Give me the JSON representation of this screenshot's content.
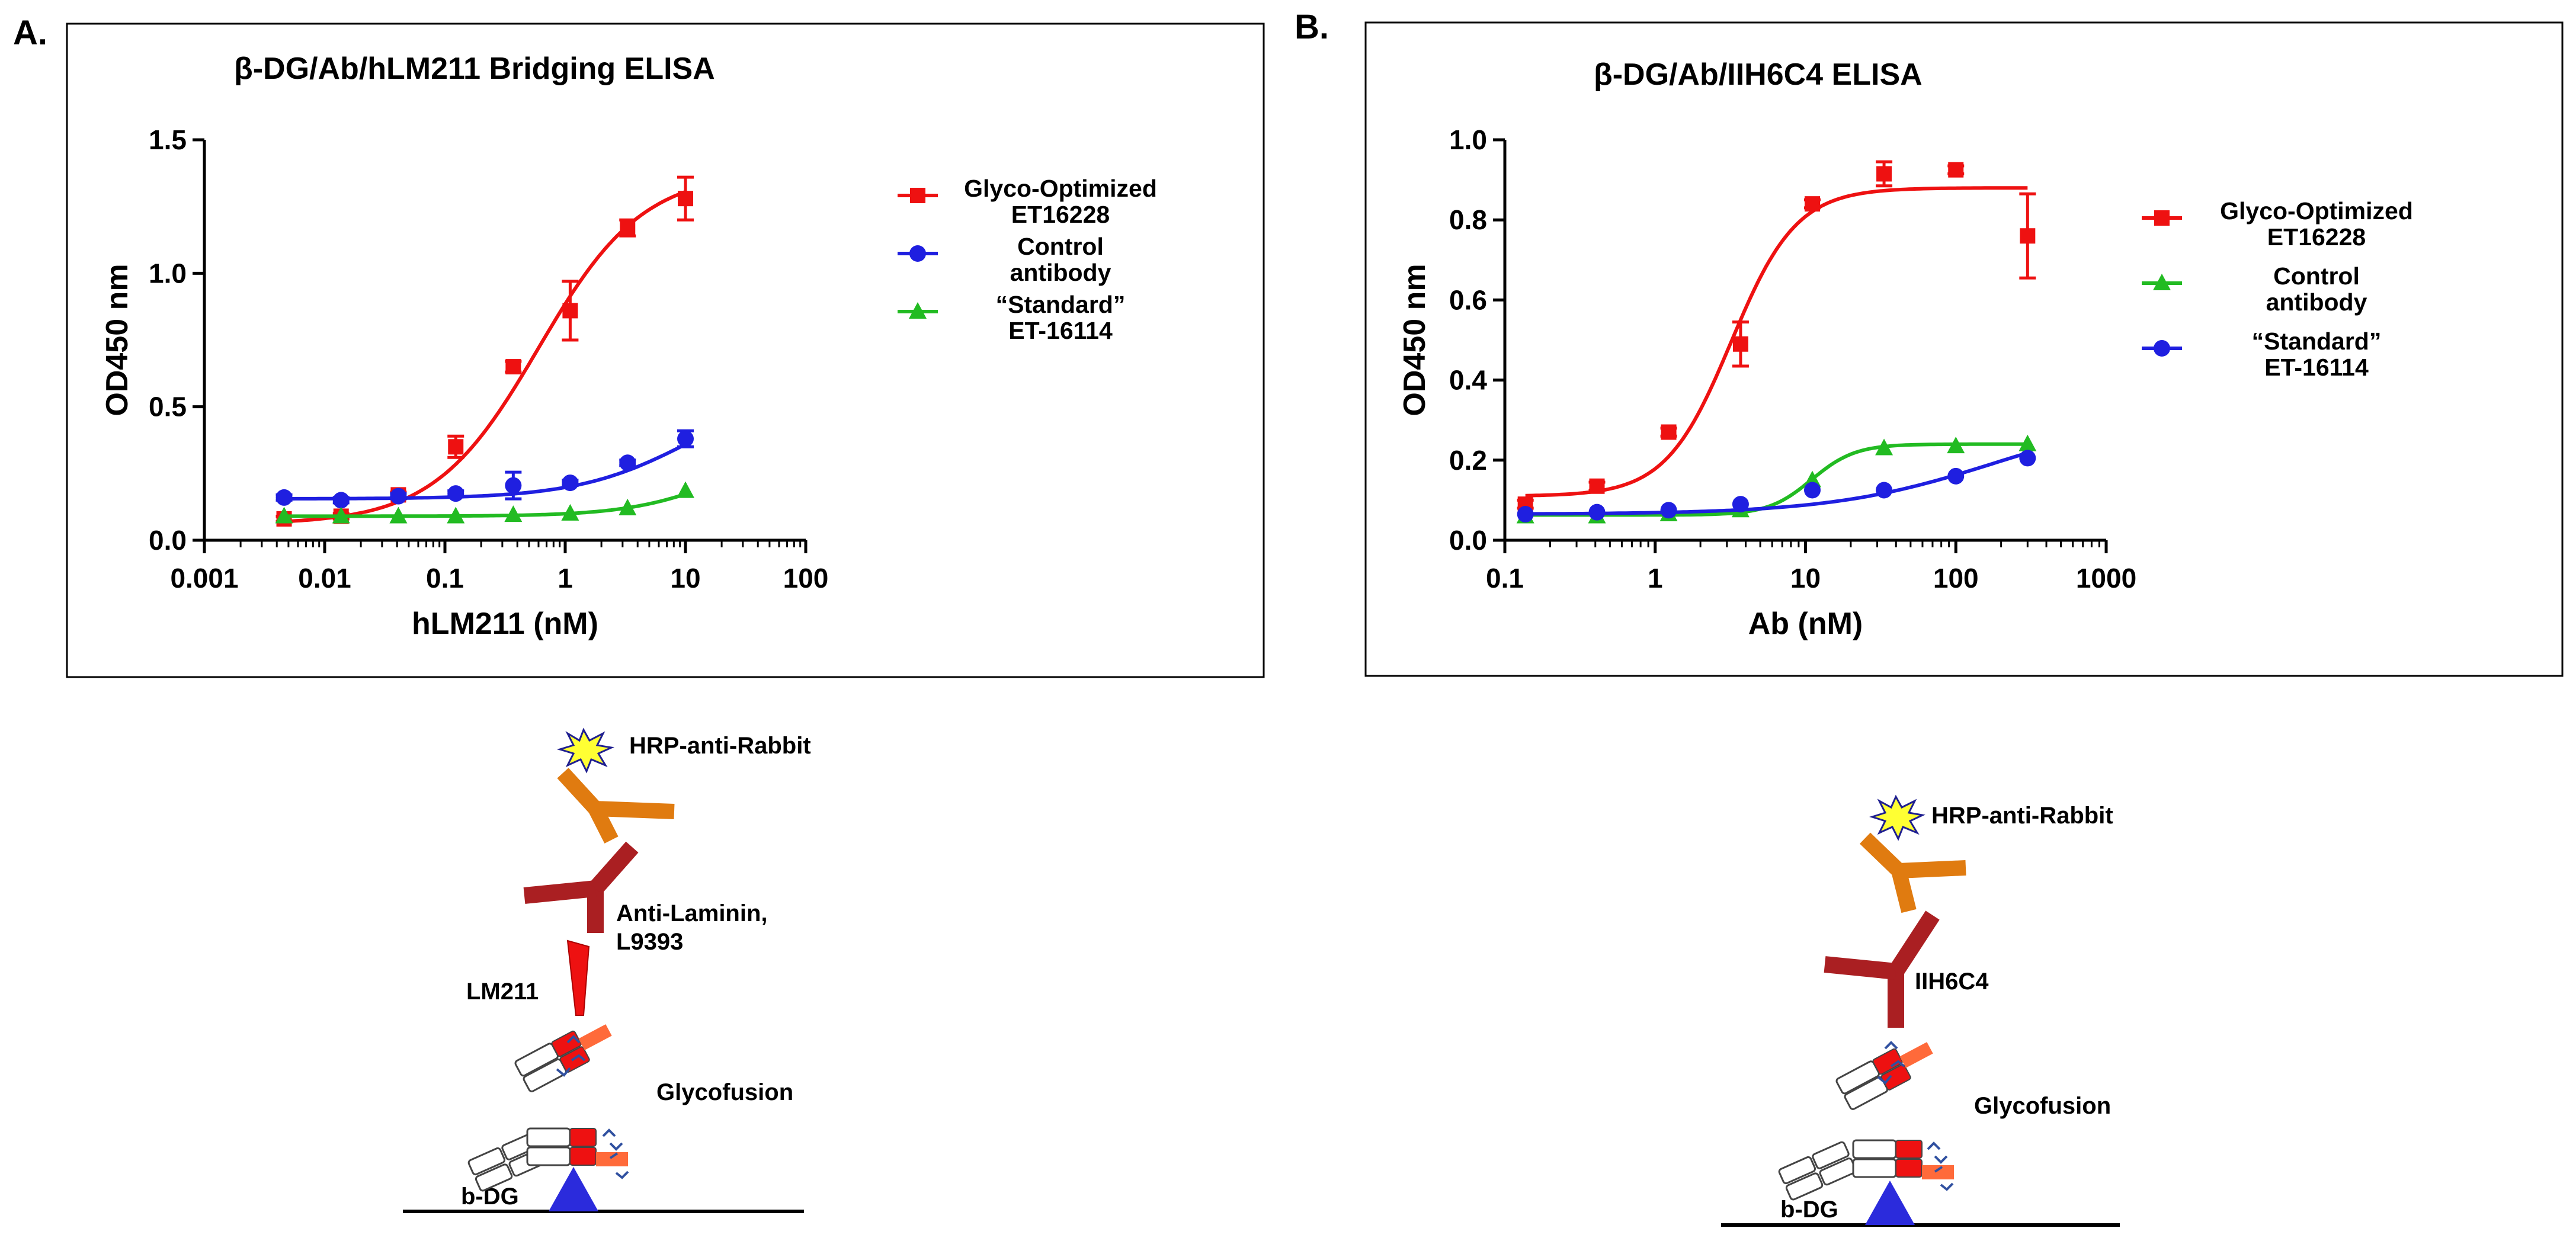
{
  "panel_labels": [
    "A.",
    "B."
  ],
  "colors": {
    "red": "#ee1111",
    "blue": "#1f1fe0",
    "green": "#22bb22",
    "dark_red": "#aa1f22",
    "orange": "#e07b10",
    "substrate_blue": "#2b2bdc",
    "spark_yellow": "#ffff33"
  },
  "chart_data": [
    {
      "type": "scatter",
      "panel": "A.",
      "title": "β-DG/Ab/hLM211 Bridging ELISA",
      "xlabel": "hLM211 (nM)",
      "ylabel": "OD450 nm",
      "xscale": "log",
      "xlim": [
        0.001,
        100
      ],
      "ylim": [
        0,
        1.5
      ],
      "xticks": [
        0.001,
        0.01,
        0.1,
        1,
        10,
        100
      ],
      "xtick_labels": [
        "0.001",
        "0.01",
        "0.1",
        "1",
        "10",
        "100"
      ],
      "yticks": [
        0,
        0.5,
        1.0,
        1.5
      ],
      "ytick_labels": [
        "0.0",
        "0.5",
        "1.0",
        "1.5"
      ],
      "legend_position": "right",
      "series": [
        {
          "name": "Glyco-Optimized ET16228",
          "legend_lines": [
            "Glyco-Optimized",
            "ET16228"
          ],
          "color": "#ee1111",
          "marker": "square",
          "x": [
            0.0046,
            0.0137,
            0.041,
            0.123,
            0.37,
            1.1,
            3.3,
            10
          ],
          "y": [
            0.08,
            0.09,
            0.17,
            0.35,
            0.65,
            0.86,
            1.17,
            1.28
          ],
          "err": [
            0.01,
            0.01,
            0.01,
            0.04,
            0.02,
            0.11,
            0.03,
            0.08
          ],
          "fit": {
            "bottom": 0.06,
            "top": 1.38,
            "ec50": 0.6,
            "hill": 1.0
          }
        },
        {
          "name": "Control antibody",
          "legend_lines": [
            "Control",
            "antibody"
          ],
          "color": "#1f1fe0",
          "marker": "circle",
          "x": [
            0.0046,
            0.0137,
            0.041,
            0.123,
            0.37,
            1.1,
            3.3,
            10
          ],
          "y": [
            0.16,
            0.15,
            0.165,
            0.175,
            0.205,
            0.215,
            0.29,
            0.38
          ],
          "err": [
            0.01,
            0.01,
            0.01,
            0.01,
            0.05,
            0.01,
            0.01,
            0.03
          ],
          "fit": {
            "bottom": 0.155,
            "top": 0.6,
            "ec50": 12,
            "hill": 0.9
          }
        },
        {
          "name": "“Standard” ET-16114",
          "legend_lines": [
            "“Standard”",
            "ET-16114"
          ],
          "color": "#22bb22",
          "marker": "triangle",
          "x": [
            0.0046,
            0.0137,
            0.041,
            0.123,
            0.37,
            1.1,
            3.3,
            10
          ],
          "y": [
            0.09,
            0.09,
            0.09,
            0.09,
            0.095,
            0.1,
            0.12,
            0.185
          ],
          "err": [
            0,
            0,
            0,
            0,
            0,
            0,
            0,
            0
          ],
          "fit": {
            "bottom": 0.09,
            "top": 0.35,
            "ec50": 20,
            "hill": 1.1
          }
        }
      ]
    },
    {
      "type": "scatter",
      "panel": "B.",
      "title": "β-DG/Ab/IIH6C4 ELISA",
      "xlabel": "Ab (nM)",
      "ylabel": "OD450 nm",
      "xscale": "log",
      "xlim": [
        0.1,
        1000
      ],
      "ylim": [
        0,
        1.0
      ],
      "xticks": [
        0.1,
        1,
        10,
        100,
        1000
      ],
      "xtick_labels": [
        "0.1",
        "1",
        "10",
        "100",
        "1000"
      ],
      "yticks": [
        0,
        0.2,
        0.4,
        0.6,
        0.8,
        1.0
      ],
      "ytick_labels": [
        "0.0",
        "0.2",
        "0.4",
        "0.6",
        "0.8",
        "1.0"
      ],
      "legend_position": "right",
      "series": [
        {
          "name": "Glyco-Optimized ET16228",
          "legend_lines": [
            "Glyco-Optimized",
            "ET16228"
          ],
          "color": "#ee1111",
          "marker": "square",
          "x": [
            0.137,
            0.41,
            1.23,
            3.7,
            11.1,
            33.3,
            100,
            300
          ],
          "y": [
            0.09,
            0.135,
            0.27,
            0.49,
            0.84,
            0.915,
            0.925,
            0.76
          ],
          "err": [
            0.01,
            0.01,
            0.01,
            0.055,
            0.01,
            0.03,
            0.01,
            0.105
          ],
          "fit": {
            "bottom": 0.11,
            "top": 0.88,
            "ec50": 3.2,
            "hill": 2.0
          }
        },
        {
          "name": "Control antibody",
          "legend_lines": [
            "Control",
            "antibody"
          ],
          "color": "#22bb22",
          "marker": "triangle",
          "x": [
            0.137,
            0.41,
            1.23,
            3.7,
            11.1,
            33.3,
            100,
            300
          ],
          "y": [
            0.06,
            0.06,
            0.065,
            0.075,
            0.15,
            0.23,
            0.235,
            0.24
          ],
          "err": [
            0,
            0,
            0,
            0,
            0,
            0,
            0,
            0
          ],
          "fit": {
            "bottom": 0.063,
            "top": 0.24,
            "ec50": 11,
            "hill": 3.0
          }
        },
        {
          "name": "“Standard” ET-16114",
          "legend_lines": [
            "“Standard”",
            "ET-16114"
          ],
          "color": "#1f1fe0",
          "marker": "circle",
          "x": [
            0.137,
            0.41,
            1.23,
            3.7,
            11.1,
            33.3,
            100,
            300
          ],
          "y": [
            0.065,
            0.07,
            0.075,
            0.09,
            0.125,
            0.125,
            0.16,
            0.205
          ],
          "err": [
            0,
            0,
            0,
            0,
            0,
            0,
            0,
            0
          ],
          "fit": {
            "bottom": 0.065,
            "top": 0.32,
            "ec50": 180,
            "hill": 0.8
          }
        }
      ]
    }
  ],
  "diagram_a": {
    "hrp_label": "HRP-anti-Rabbit",
    "antibody_label": [
      "Anti-Laminin,",
      "L9393"
    ],
    "ligand_label": "LM211",
    "glyco_label": "Glycofusion",
    "substrate_label": "b-DG"
  },
  "diagram_b": {
    "hrp_label": "HRP-anti-Rabbit",
    "antibody_label": "IIH6C4",
    "glyco_label": "Glycofusion",
    "substrate_label": "b-DG"
  }
}
